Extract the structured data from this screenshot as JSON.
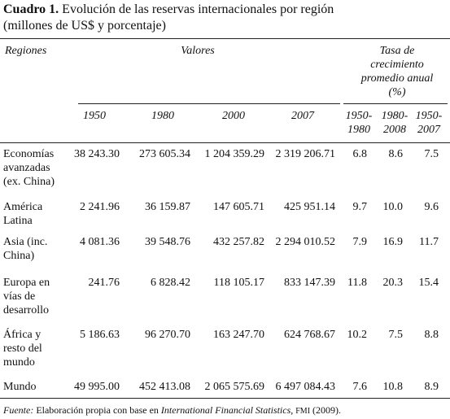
{
  "header": {
    "label": "Cuadro 1.",
    "title": "Evolución de las reservas internacionales por región",
    "subtitle": "(millones de US$ y porcentaje)"
  },
  "table": {
    "group_headers": {
      "regions": "Regiones",
      "values": "Valores",
      "growth": [
        "Tasa de",
        "crecimiento",
        "promedio anual",
        "(%)"
      ]
    },
    "columns": [
      [
        "1950"
      ],
      [
        "1980"
      ],
      [
        "2000"
      ],
      [
        "2007"
      ],
      [
        "1950-",
        "1980"
      ],
      [
        "1980-",
        "2008"
      ],
      [
        "1950-",
        "2007"
      ]
    ],
    "rows": [
      {
        "region": [
          "Economías",
          "avanzadas",
          "(ex. China)"
        ],
        "cells": [
          "38 243.30",
          "273 605.34",
          "1 204 359.29",
          "2 319 206.71",
          "6.8",
          "8.6",
          "7.5"
        ]
      },
      {
        "region": [
          "América",
          "Latina"
        ],
        "cells": [
          "2 241.96",
          "36 159.87",
          "147 605.71",
          "425 951.14",
          "9.7",
          "10.0",
          "9.6"
        ]
      },
      {
        "region": [
          "Asia (inc.",
          "China)"
        ],
        "cells": [
          "4 081.36",
          "39 548.76",
          "432 257.82",
          "2 294 010.52",
          "7.9",
          "16.9",
          "11.7"
        ]
      },
      {
        "region": [
          "Europa en",
          "vías de",
          "desarrollo"
        ],
        "cells": [
          "241.76",
          "6 828.42",
          "118 105.17",
          "833 147.39",
          "11.8",
          "20.3",
          "15.4"
        ]
      },
      {
        "region": [
          "África y",
          "resto del",
          "mundo"
        ],
        "cells": [
          "5 186.63",
          "96 270.70",
          "163 247.70",
          "624 768.67",
          "10.2",
          "7.5",
          "8.8"
        ]
      },
      {
        "region": [
          "Mundo"
        ],
        "cells": [
          "49 995.00",
          "452 413.08",
          "2 065 575.69",
          "6 497 084.43",
          "7.6",
          "10.8",
          "8.9"
        ]
      }
    ]
  },
  "footer": {
    "parts": [
      {
        "text": "Fuente:",
        "style": "italic"
      },
      {
        "text": " Elaboración propia con base en ",
        "style": "normal"
      },
      {
        "text": "International Financial Statistics",
        "style": "italic"
      },
      {
        "text": ", ",
        "style": "normal"
      },
      {
        "text": "FMI",
        "style": "small-caps"
      },
      {
        "text": " (2009).",
        "style": "normal"
      }
    ]
  }
}
